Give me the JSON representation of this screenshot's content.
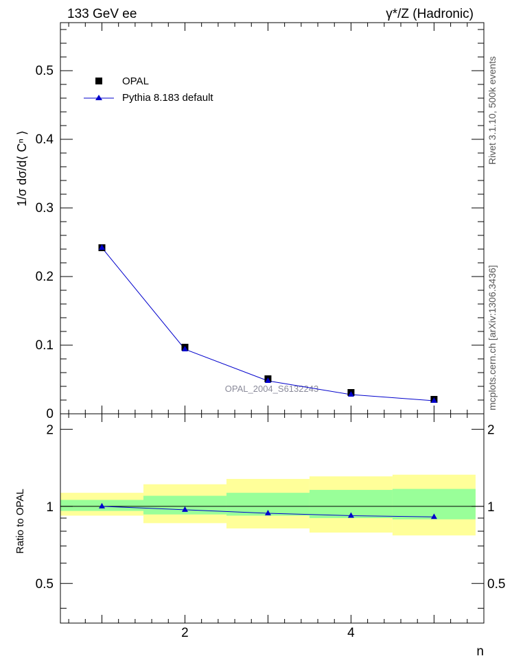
{
  "header": {
    "left_title": "133 GeV ee",
    "right_title": "γ*/Z (Hadronic)"
  },
  "side_text": {
    "rivet": "Rivet 3.1.10,  500k events",
    "mcplots": "mcplots.cern.ch [arXiv:1306.3436]"
  },
  "watermark": "OPAL_2004_S6132243",
  "colors": {
    "data_marker": "#000000",
    "mc_line": "#0000cc",
    "band_inner": "#99ff99",
    "band_outer": "#ffff99"
  },
  "chart_data": [
    {
      "type": "scatter",
      "panel": "main",
      "ylabel": "1/σ dσ/d⟨ Cⁿ ⟩",
      "xlabel": "",
      "xlim": [
        0.5,
        5.6
      ],
      "ylim": [
        0,
        0.57
      ],
      "yticks": [
        0,
        0.1,
        0.2,
        0.3,
        0.4,
        0.5
      ],
      "ytick_labels": [
        "0",
        "0.1",
        "0.2",
        "0.3",
        "0.4",
        "0.5"
      ],
      "legend_position": "top-left",
      "series": [
        {
          "name": "OPAL",
          "marker": "square",
          "x": [
            1,
            2,
            3,
            4,
            5
          ],
          "values": [
            0.242,
            0.097,
            0.051,
            0.031,
            0.021
          ]
        },
        {
          "name": "Pythia 8.183 default",
          "marker": "triangle",
          "x": [
            1,
            2,
            3,
            4,
            5
          ],
          "values": [
            0.242,
            0.094,
            0.048,
            0.028,
            0.019
          ]
        }
      ]
    },
    {
      "type": "line",
      "panel": "ratio",
      "ylabel": "Ratio to OPAL",
      "xlabel": "n",
      "xlim": [
        0.5,
        5.6
      ],
      "ylim": [
        0.35,
        2.3
      ],
      "yticks": [
        0.5,
        1,
        2
      ],
      "ytick_labels": [
        "0.5",
        "1",
        "2"
      ],
      "xticks": [
        2,
        4
      ],
      "xtick_labels": [
        "2",
        "4"
      ],
      "bin_edges": [
        0.5,
        1.5,
        2.5,
        3.5,
        4.5,
        5.5
      ],
      "bands": {
        "inner_lower": [
          0.96,
          0.93,
          0.92,
          0.9,
          0.89
        ],
        "inner_upper": [
          1.06,
          1.1,
          1.13,
          1.16,
          1.17
        ],
        "outer_lower": [
          0.92,
          0.86,
          0.82,
          0.79,
          0.77
        ],
        "outer_upper": [
          1.13,
          1.22,
          1.28,
          1.31,
          1.33
        ]
      },
      "series": [
        {
          "name": "Pythia 8.183 default",
          "x": [
            1,
            2,
            3,
            4,
            5
          ],
          "values": [
            1.0,
            0.97,
            0.94,
            0.92,
            0.91
          ]
        }
      ]
    }
  ]
}
